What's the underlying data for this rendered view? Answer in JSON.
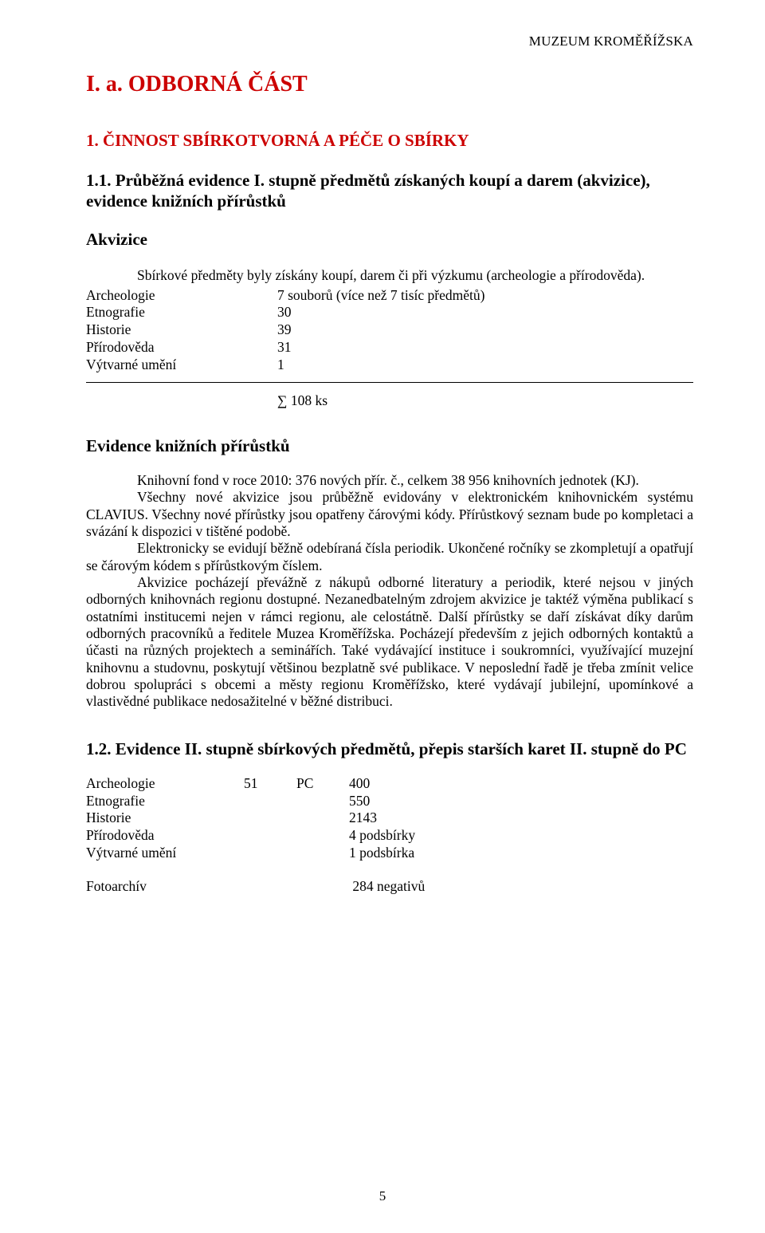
{
  "header": {
    "right": "MUZEUM KROMĚŘÍŽSKA"
  },
  "title": "I. a. ODBORNÁ ČÁST",
  "section1": {
    "heading": "1. ČINNOST SBÍRKOTVORNÁ A PÉČE O SBÍRKY",
    "sub11": {
      "heading": "1.1. Průběžná evidence I. stupně předmětů získaných koupí a darem (akvizice), evidence knižních přírůstků",
      "akvizice_heading": "Akvizice",
      "intro": "Sbírkové předměty byly získány koupí, darem či při výzkumu (archeologie a přírodověda).",
      "rows": [
        {
          "label": "Archeologie",
          "value": "7 souborů (více než 7 tisíc předmětů)"
        },
        {
          "label": "Etnografie",
          "value": "30"
        },
        {
          "label": "Historie",
          "value": "39"
        },
        {
          "label": "Přírodověda",
          "value": "31"
        },
        {
          "label": "Výtvarné umění",
          "value": "1"
        }
      ],
      "sum": "∑ 108 ks",
      "evidence_heading": "Evidence knižních přírůstků",
      "paragraphs": {
        "p1": "Knihovní fond v roce 2010: 376 nových přír. č., celkem 38 956 knihovních jednotek (KJ).",
        "p2": "Všechny nové akvizice jsou průběžně evidovány v elektronickém knihovnickém systému CLAVIUS. Všechny nové přírůstky jsou opatřeny čárovými kódy. Přírůstkový seznam bude po kompletaci a svázání k dispozici v tištěné podobě.",
        "p3": "Elektronicky se evidují běžně odebíraná čísla periodik. Ukončené ročníky se zkompletují a opatřují se čárovým kódem s přírůstkovým číslem.",
        "p4": "Akvizice pocházejí převážně z nákupů odborné literatury a periodik, které nejsou v jiných odborných knihovnách regionu dostupné. Nezanedbatelným zdrojem akvizice je taktéž výměna publikací s ostatními institucemi nejen v rámci regionu, ale celostátně. Další přírůstky se daří získávat díky darům odborných pracovníků a ředitele Muzea Kroměřížska. Pocházejí především z jejich odborných kontaktů a účasti na různých projektech a seminářích. Také vydávající instituce i soukromníci, využívající muzejní knihovnu a studovnu, poskytují většinou bezplatně své publikace. V neposlední řadě je třeba zmínit velice dobrou spolupráci s obcemi a městy regionu Kroměřížsko, které vydávají jubilejní, upomínkové a vlastivědné publikace nedosažitelné v běžné distribuci."
      }
    }
  },
  "section12": {
    "heading": "1.2. Evidence II. stupně sbírkových předmětů, přepis starších karet II. stupně do PC",
    "rows": [
      {
        "c1": "Archeologie",
        "c2": "51",
        "c3": "PC",
        "c4": "400"
      },
      {
        "c1": "Etnografie",
        "c2": "",
        "c3": "",
        "c4": "550"
      },
      {
        "c1": "Historie",
        "c2": "",
        "c3": "",
        "c4": "2143"
      },
      {
        "c1": "Přírodověda",
        "c2": "",
        "c3": "",
        "c4": "4 podsbírky"
      },
      {
        "c1": "Výtvarné umění",
        "c2": "",
        "c3": "",
        "c4": "1 podsbírka"
      }
    ],
    "foto": {
      "label": "Fotoarchív",
      "value": "284 negativů"
    }
  },
  "page_number": "5",
  "colors": {
    "red": "#cc0000",
    "text": "#000000",
    "bg": "#ffffff",
    "rule": "#000000"
  }
}
